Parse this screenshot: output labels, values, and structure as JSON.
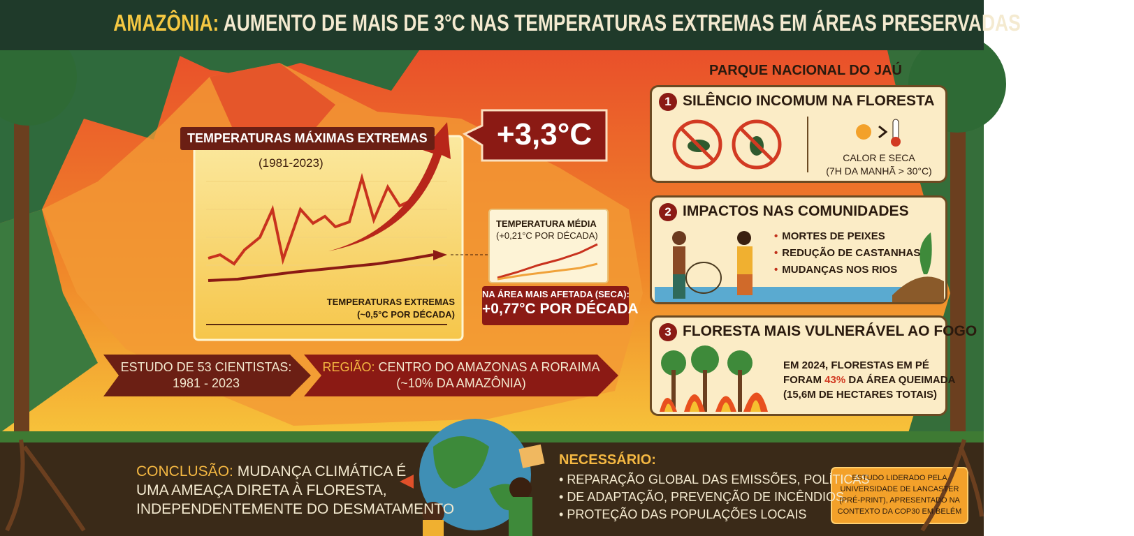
{
  "header": {
    "title_highlight": "AMAZÔNIA:",
    "title_rest": "AUMENTO DE MAIS DE 3°C NAS TEMPERATURAS EXTREMAS EM ÁREAS PRESERVADAS"
  },
  "chart_panel": {
    "title": "TEMPERATURAS MÁXIMAS EXTREMAS",
    "period": "(1981-2023)",
    "trend_label": "TEMPERATURAS EXTREMAS",
    "trend_rate": "(~0,5°C POR DÉCADA)",
    "headline": "+3,3°C",
    "inset_title": "TEMPERATURA MÉDIA",
    "inset_rate": "(+0,21°C POR DÉCADA)",
    "affected_label": "NA ÁREA MAIS AFETADA (SECA):",
    "affected_rate": "+0,77°C POR DÉCADA"
  },
  "banners": {
    "study_lines": [
      "ESTUDO DE 53 CIENTISTAS:",
      "1981 - 2023"
    ],
    "region_highlight": "REGIÃO:",
    "region_rest": "CENTRO DO AMAZONAS A RORAIMA",
    "region_share": "(~10% DA AMAZÔNIA)"
  },
  "park": {
    "title": "PARQUE NACIONAL DO JAÚ",
    "panels": [
      {
        "number": "1",
        "title": "SILÊNCIO INCOMUM NA FLORESTA",
        "lines": [
          "CALOR E SECA",
          "(7H DA MANHÃ > 30°C)"
        ]
      },
      {
        "number": "2",
        "title": "IMPACTOS NAS COMUNIDADES",
        "lines": [
          "MORTES DE PEIXES",
          "REDUÇÃO DE CASTANHAS",
          "MUDANÇAS NOS RIOS"
        ]
      },
      {
        "number": "3",
        "title": "FLORESTA MAIS VULNERÁVEL AO FOGO",
        "lines": [
          "EM 2024, FLORESTAS EM PÉ",
          "FORAM",
          "43%",
          "DA ÁREA QUEIMADA",
          "(15,6M DE HECTARES TOTAIS)"
        ]
      }
    ]
  },
  "footer": {
    "conclusion_label": "CONCLUSÃO:",
    "conclusion_lines": [
      "MUDANÇA CLIMÁTICA É",
      "UMA AMEAÇA DIRETA À FLORESTA,",
      "INDEPENDENTEMENTE DO DESMATAMENTO"
    ],
    "needed_label": "NECESSÁRIO:",
    "needed_lines": [
      "REPARAÇÃO GLOBAL DAS EMISSÕES, POLÍTICAS",
      "DE ADAPTAÇÃO, PREVENÇÃO DE INCÊNDIOS,",
      "PROTEÇÃO DAS POPULAÇÕES LOCAIS"
    ],
    "source_lines": [
      "ESTUDO LIDERADO PELA",
      "UNIVERSIDADE DE LANCASTER",
      "(PRÉ-PRINT), APRESENTADO NA",
      "CONTEXTO DA COP30 EM BELÉM"
    ]
  }
}
